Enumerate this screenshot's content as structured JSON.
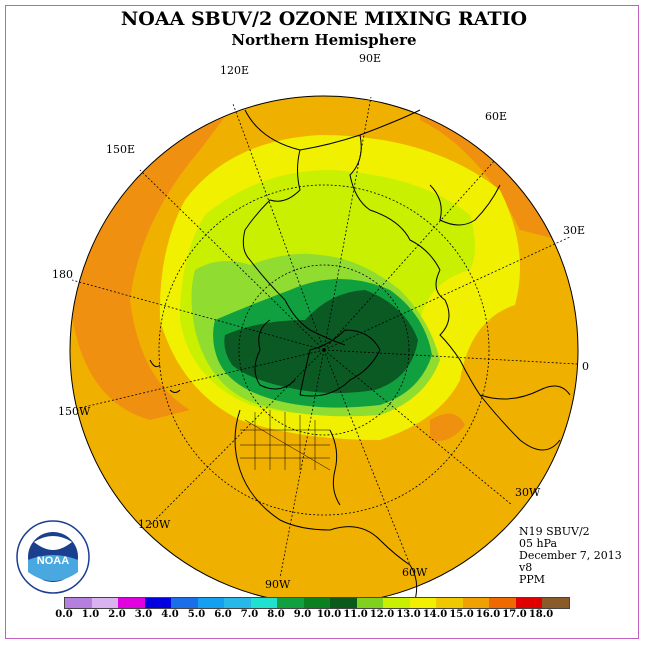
{
  "title": "NOAA SBUV/2 OZONE MIXING RATIO",
  "subtitle": "Northern Hemisphere",
  "longitude_labels": {
    "lon_90e": "90E",
    "lon_120e": "120E",
    "lon_60e": "60E",
    "lon_150e": "150E",
    "lon_30e": "30E",
    "lon_180": "180",
    "lon_0": "0",
    "lon_150w": "150W",
    "lon_30w": "30W",
    "lon_120w": "120W",
    "lon_60w": "60W",
    "lon_90w": "90W"
  },
  "info": {
    "satellite": "N19 SBUV/2",
    "level": "05 hPa",
    "date": "December 7, 2013",
    "version": "v8",
    "units": "PPM"
  },
  "logo_text": "NOAA",
  "colorbar": {
    "ticks": [
      "0.0",
      "1.0",
      "2.0",
      "3.0",
      "4.0",
      "5.0",
      "6.0",
      "7.0",
      "8.0",
      "9.0",
      "10.0",
      "11.0",
      "12.0",
      "13.0",
      "14.0",
      "15.0",
      "16.0",
      "17.0",
      "18.0"
    ],
    "colors": [
      "#b57fe0",
      "#d9b3f0",
      "#e000e0",
      "#0000e0",
      "#1a6fe8",
      "#14a0f0",
      "#26b8e8",
      "#20e0d0",
      "#10a040",
      "#0a8020",
      "#0a5a1a",
      "#80d020",
      "#c8f000",
      "#f0f000",
      "#f0c800",
      "#f0a000",
      "#f06800",
      "#e00000",
      "#8a5a2a"
    ]
  },
  "map_fill_colors": {
    "bg": "#f0a500",
    "orange": "#f09010",
    "yellow": "#f0f000",
    "lime": "#c8f000",
    "lightgreen": "#90dc30",
    "green": "#10a040",
    "darkgreen": "#0b5a24"
  }
}
